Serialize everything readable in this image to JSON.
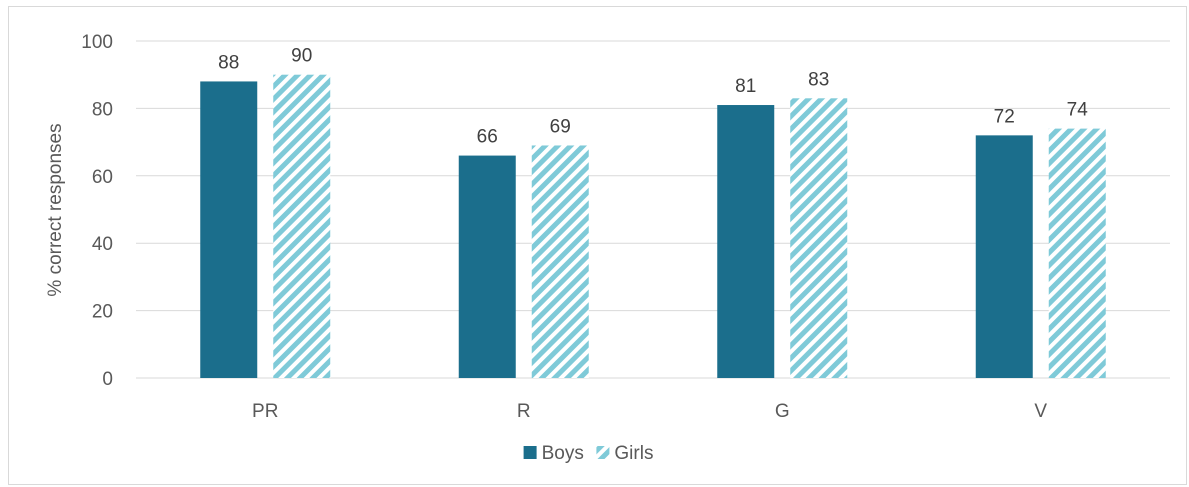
{
  "chart_data": {
    "type": "bar",
    "categories": [
      "PR",
      "R",
      "G",
      "V"
    ],
    "series": [
      {
        "name": "Boys",
        "values": [
          88,
          66,
          81,
          72
        ],
        "color": "#1b6e8c",
        "pattern": "solid"
      },
      {
        "name": "Girls",
        "values": [
          90,
          69,
          83,
          74
        ],
        "color": "#7fcad8",
        "pattern": "diagonal-stripes"
      }
    ],
    "data_labels": [
      [
        "88",
        "66",
        "81",
        "72"
      ],
      [
        "90",
        "69",
        "83",
        "74"
      ]
    ],
    "title": "",
    "xlabel": "",
    "ylabel": "% correct responses",
    "ylim": [
      0,
      100
    ],
    "yticks": [
      0,
      20,
      40,
      60,
      80,
      100
    ],
    "grid": true,
    "legend": "bottom"
  }
}
